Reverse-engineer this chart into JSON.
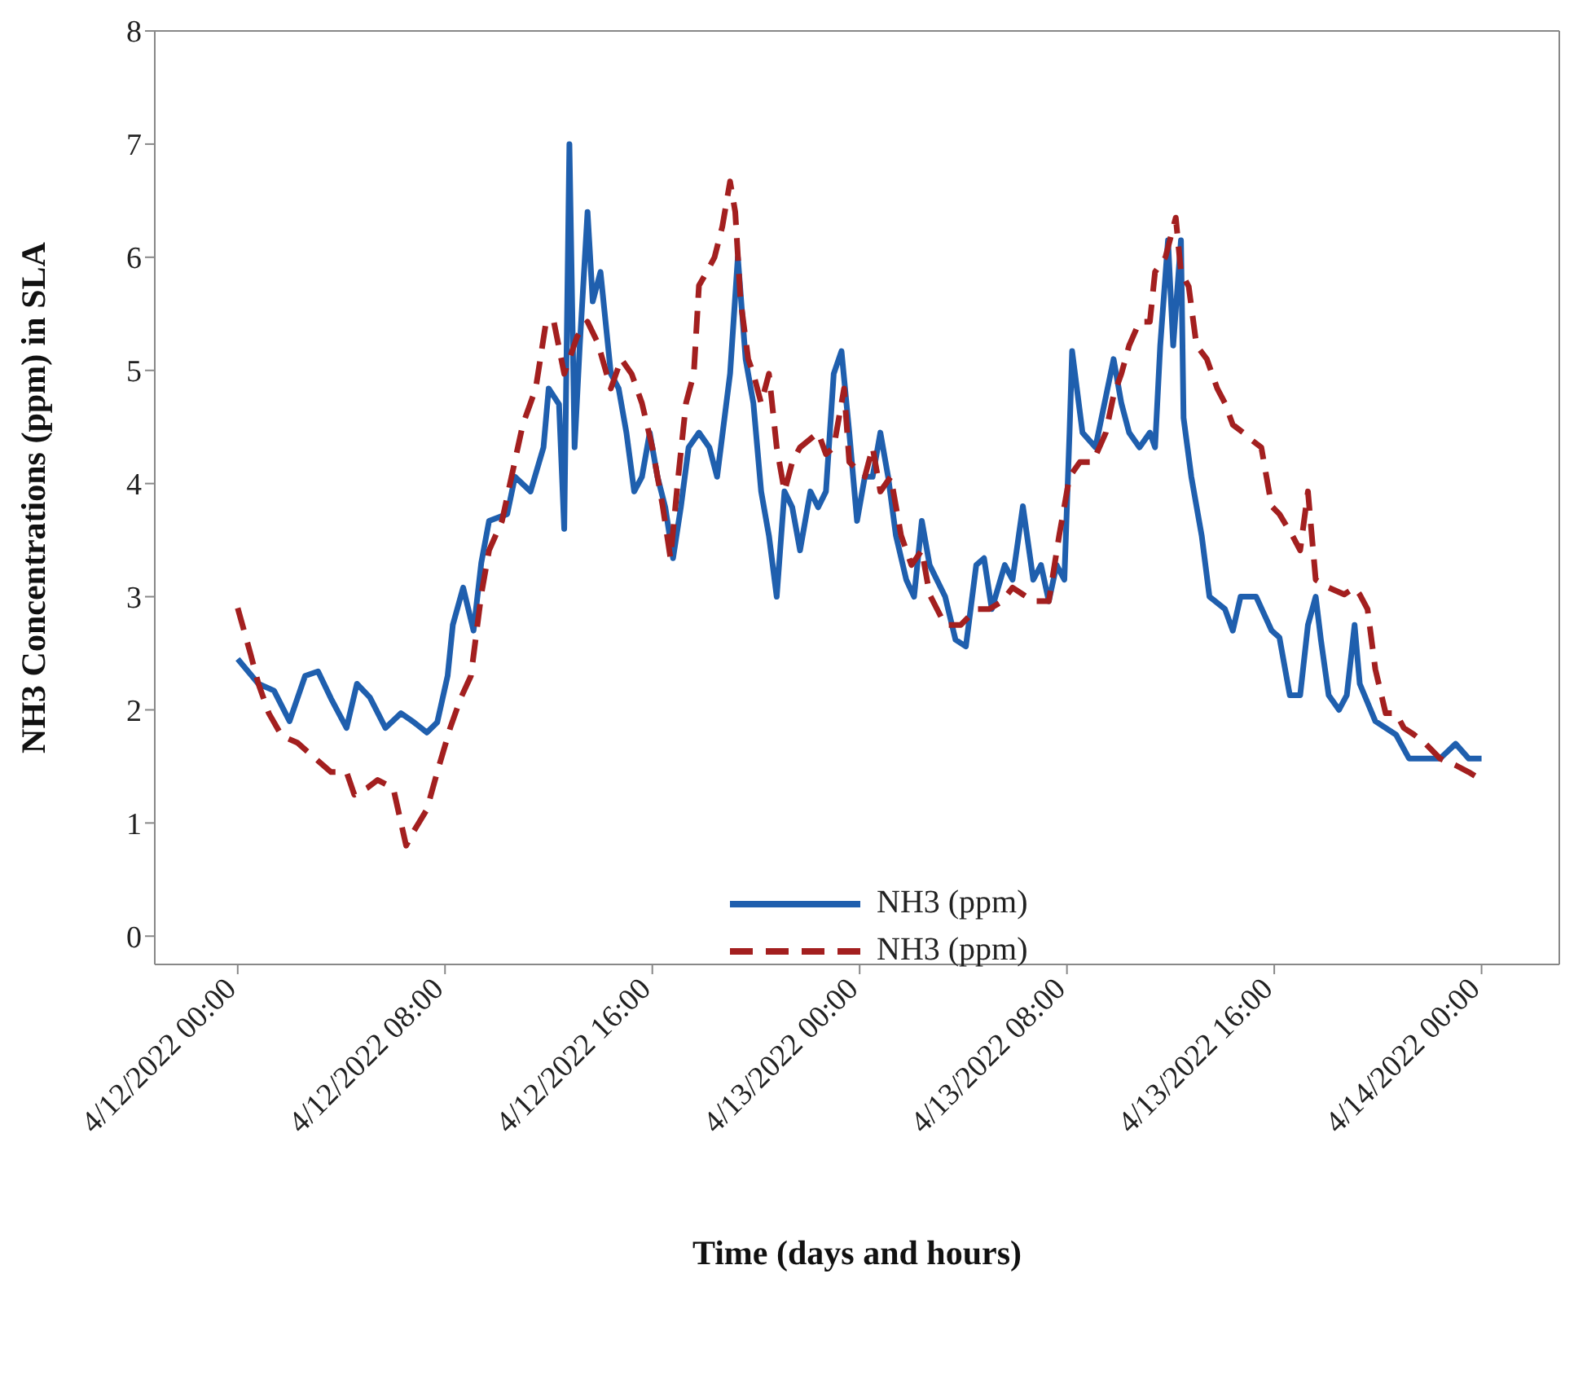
{
  "chart_data": {
    "type": "line",
    "xlabel": "Time (days and hours)",
    "ylabel": "NH3 Concentrations (ppm) in SLA",
    "xlim": [
      "2022-04-11T20:48",
      "2022-04-14T03:00"
    ],
    "xticks": [
      {
        "value": "2022-04-12T00:00",
        "label": "4/12/2022 00:00"
      },
      {
        "value": "2022-04-12T08:00",
        "label": "4/12/2022 08:00"
      },
      {
        "value": "2022-04-12T16:00",
        "label": "4/12/2022 16:00"
      },
      {
        "value": "2022-04-13T00:00",
        "label": "4/13/2022 00:00"
      },
      {
        "value": "2022-04-13T08:00",
        "label": "4/13/2022 08:00"
      },
      {
        "value": "2022-04-13T16:00",
        "label": "4/13/2022 16:00"
      },
      {
        "value": "2022-04-14T00:00",
        "label": "4/14/2022 00:00"
      }
    ],
    "ylim": [
      -0.25,
      8
    ],
    "yticks": [
      0,
      1,
      2,
      3,
      4,
      5,
      6,
      7,
      8
    ],
    "legend": "bottom",
    "marker": "none",
    "series": [
      {
        "name": "NH3 (ppm)",
        "color": "#1f5fae",
        "line_style": "solid",
        "x": [
          "2022-04-12T00:00",
          "2022-04-12T00:48",
          "2022-04-12T01:24",
          "2022-04-12T02:00",
          "2022-04-12T02:36",
          "2022-04-12T03:06",
          "2022-04-12T03:36",
          "2022-04-12T04:12",
          "2022-04-12T04:36",
          "2022-04-12T05:06",
          "2022-04-12T05:42",
          "2022-04-12T06:18",
          "2022-04-12T06:48",
          "2022-04-12T07:18",
          "2022-04-12T07:42",
          "2022-04-12T08:06",
          "2022-04-12T08:18",
          "2022-04-12T08:42",
          "2022-04-12T09:06",
          "2022-04-12T09:24",
          "2022-04-12T09:42",
          "2022-04-12T10:24",
          "2022-04-12T10:42",
          "2022-04-12T11:18",
          "2022-04-12T11:48",
          "2022-04-12T12:00",
          "2022-04-12T12:24",
          "2022-04-12T12:36",
          "2022-04-12T12:48",
          "2022-04-12T13:00",
          "2022-04-12T13:12",
          "2022-04-12T13:30",
          "2022-04-12T13:42",
          "2022-04-12T14:00",
          "2022-04-12T14:24",
          "2022-04-12T14:42",
          "2022-04-12T15:00",
          "2022-04-12T15:18",
          "2022-04-12T15:36",
          "2022-04-12T15:54",
          "2022-04-12T16:12",
          "2022-04-12T16:30",
          "2022-04-12T16:48",
          "2022-04-12T17:06",
          "2022-04-12T17:24",
          "2022-04-12T17:48",
          "2022-04-12T18:12",
          "2022-04-12T18:30",
          "2022-04-12T19:00",
          "2022-04-12T19:18",
          "2022-04-12T19:36",
          "2022-04-12T19:54",
          "2022-04-12T20:12",
          "2022-04-12T20:30",
          "2022-04-12T20:48",
          "2022-04-12T21:06",
          "2022-04-12T21:24",
          "2022-04-12T21:42",
          "2022-04-12T22:06",
          "2022-04-12T22:24",
          "2022-04-12T22:42",
          "2022-04-12T23:00",
          "2022-04-12T23:18",
          "2022-04-12T23:36",
          "2022-04-12T23:54",
          "2022-04-13T00:12",
          "2022-04-13T00:30",
          "2022-04-13T00:48",
          "2022-04-13T01:06",
          "2022-04-13T01:24",
          "2022-04-13T01:48",
          "2022-04-13T02:06",
          "2022-04-13T02:24",
          "2022-04-13T02:42",
          "2022-04-13T03:18",
          "2022-04-13T03:42",
          "2022-04-13T04:06",
          "2022-04-13T04:30",
          "2022-04-13T04:48",
          "2022-04-13T05:06",
          "2022-04-13T05:36",
          "2022-04-13T05:54",
          "2022-04-13T06:18",
          "2022-04-13T06:42",
          "2022-04-13T07:00",
          "2022-04-13T07:18",
          "2022-04-13T07:36",
          "2022-04-13T07:54",
          "2022-04-13T08:06",
          "2022-04-13T08:12",
          "2022-04-13T08:36",
          "2022-04-13T09:06",
          "2022-04-13T09:48",
          "2022-04-13T10:06",
          "2022-04-13T10:24",
          "2022-04-13T10:48",
          "2022-04-13T11:12",
          "2022-04-13T11:24",
          "2022-04-13T11:36",
          "2022-04-13T11:54",
          "2022-04-13T12:06",
          "2022-04-13T12:24",
          "2022-04-13T12:30",
          "2022-04-13T12:48",
          "2022-04-13T13:12",
          "2022-04-13T13:30",
          "2022-04-13T14:06",
          "2022-04-13T14:24",
          "2022-04-13T14:42",
          "2022-04-13T15:18",
          "2022-04-13T15:54",
          "2022-04-13T16:12",
          "2022-04-13T16:36",
          "2022-04-13T17:00",
          "2022-04-13T17:18",
          "2022-04-13T17:36",
          "2022-04-13T17:48",
          "2022-04-13T18:06",
          "2022-04-13T18:30",
          "2022-04-13T18:48",
          "2022-04-13T19:06",
          "2022-04-13T19:18",
          "2022-04-13T19:54",
          "2022-04-13T20:42",
          "2022-04-13T21:12",
          "2022-04-13T21:48",
          "2022-04-13T22:24",
          "2022-04-13T23:00",
          "2022-04-13T23:30",
          "2022-04-14T00:00"
        ],
        "values": [
          2.45,
          2.23,
          2.17,
          1.9,
          2.3,
          2.34,
          2.1,
          1.84,
          2.23,
          2.11,
          1.84,
          1.97,
          1.89,
          1.8,
          1.89,
          2.3,
          2.75,
          3.08,
          2.7,
          3.3,
          3.67,
          3.73,
          4.06,
          3.93,
          4.32,
          4.84,
          4.7,
          3.6,
          7.0,
          4.32,
          5.22,
          6.4,
          5.61,
          5.87,
          4.97,
          4.84,
          4.45,
          3.93,
          4.06,
          4.45,
          4.06,
          3.79,
          3.34,
          3.79,
          4.32,
          4.45,
          4.32,
          4.06,
          4.97,
          6.0,
          5.1,
          4.71,
          3.93,
          3.54,
          3.0,
          3.93,
          3.79,
          3.41,
          3.93,
          3.79,
          3.93,
          4.97,
          5.17,
          4.45,
          3.67,
          4.06,
          4.06,
          4.45,
          4.06,
          3.54,
          3.15,
          3.0,
          3.67,
          3.28,
          3.0,
          2.62,
          2.56,
          3.28,
          3.34,
          2.89,
          3.28,
          3.15,
          3.8,
          3.15,
          3.28,
          2.96,
          3.28,
          3.15,
          4.45,
          5.17,
          4.45,
          4.32,
          5.1,
          4.71,
          4.45,
          4.32,
          4.45,
          4.32,
          5.22,
          6.15,
          5.22,
          6.15,
          4.58,
          4.06,
          3.54,
          3.0,
          2.89,
          2.7,
          3.0,
          3.0,
          2.7,
          2.64,
          2.13,
          2.13,
          2.75,
          3.0,
          2.62,
          2.13,
          2.0,
          2.13,
          2.75,
          2.23,
          1.9,
          1.78,
          1.57,
          1.57,
          1.57,
          1.7,
          1.57,
          1.57
        ]
      },
      {
        "name": "NH3 (ppm)",
        "color": "#a31f1f",
        "line_style": "dashed",
        "x": [
          "2022-04-12T00:00",
          "2022-04-12T00:30",
          "2022-04-12T00:48",
          "2022-04-12T01:12",
          "2022-04-12T01:42",
          "2022-04-12T02:18",
          "2022-04-12T03:00",
          "2022-04-12T03:36",
          "2022-04-12T04:12",
          "2022-04-12T04:30",
          "2022-04-12T05:00",
          "2022-04-12T05:24",
          "2022-04-12T06:00",
          "2022-04-12T06:30",
          "2022-04-12T06:48",
          "2022-04-12T07:18",
          "2022-04-12T07:42",
          "2022-04-12T08:12",
          "2022-04-12T08:36",
          "2022-04-12T09:00",
          "2022-04-12T09:24",
          "2022-04-12T09:42",
          "2022-04-12T10:12",
          "2022-04-12T10:30",
          "2022-04-12T11:00",
          "2022-04-12T11:30",
          "2022-04-12T11:54",
          "2022-04-12T12:12",
          "2022-04-12T12:36",
          "2022-04-12T13:06",
          "2022-04-12T13:30",
          "2022-04-12T13:54",
          "2022-04-12T14:24",
          "2022-04-12T14:48",
          "2022-04-12T15:12",
          "2022-04-12T15:36",
          "2022-04-12T16:00",
          "2022-04-12T16:24",
          "2022-04-12T16:42",
          "2022-04-12T17:00",
          "2022-04-12T17:18",
          "2022-04-12T17:36",
          "2022-04-12T17:48",
          "2022-04-12T18:06",
          "2022-04-12T18:24",
          "2022-04-12T18:42",
          "2022-04-12T19:00",
          "2022-04-12T19:12",
          "2022-04-12T19:24",
          "2022-04-12T19:42",
          "2022-04-12T19:54",
          "2022-04-12T20:12",
          "2022-04-12T20:30",
          "2022-04-12T20:48",
          "2022-04-12T21:06",
          "2022-04-12T21:24",
          "2022-04-12T21:42",
          "2022-04-12T22:24",
          "2022-04-12T22:42",
          "2022-04-12T23:00",
          "2022-04-12T23:24",
          "2022-04-12T23:36",
          "2022-04-13T00:12",
          "2022-04-13T00:30",
          "2022-04-13T00:48",
          "2022-04-13T01:12",
          "2022-04-13T01:36",
          "2022-04-13T02:00",
          "2022-04-13T02:24",
          "2022-04-13T02:42",
          "2022-04-13T03:18",
          "2022-04-13T03:54",
          "2022-04-13T04:30",
          "2022-04-13T05:00",
          "2022-04-13T05:30",
          "2022-04-13T05:54",
          "2022-04-13T06:18",
          "2022-04-13T06:42",
          "2022-04-13T07:18",
          "2022-04-13T07:42",
          "2022-04-13T08:06",
          "2022-04-13T08:30",
          "2022-04-13T09:00",
          "2022-04-13T09:30",
          "2022-04-13T09:48",
          "2022-04-13T10:06",
          "2022-04-13T10:24",
          "2022-04-13T10:48",
          "2022-04-13T11:12",
          "2022-04-13T11:24",
          "2022-04-13T11:48",
          "2022-04-13T12:12",
          "2022-04-13T12:24",
          "2022-04-13T12:42",
          "2022-04-13T13:00",
          "2022-04-13T13:24",
          "2022-04-13T13:48",
          "2022-04-13T14:06",
          "2022-04-13T14:24",
          "2022-04-13T14:48",
          "2022-04-13T15:06",
          "2022-04-13T15:30",
          "2022-04-13T15:54",
          "2022-04-13T16:12",
          "2022-04-13T16:42",
          "2022-04-13T17:00",
          "2022-04-13T17:18",
          "2022-04-13T17:36",
          "2022-04-13T18:06",
          "2022-04-13T18:42",
          "2022-04-13T19:06",
          "2022-04-13T19:18",
          "2022-04-13T19:36",
          "2022-04-13T19:54",
          "2022-04-13T20:18",
          "2022-04-13T20:42",
          "2022-04-13T21:00",
          "2022-04-13T21:24",
          "2022-04-13T21:48",
          "2022-04-13T22:24",
          "2022-04-13T23:00",
          "2022-04-13T23:30",
          "2022-04-14T00:00"
        ],
        "values": [
          2.9,
          2.49,
          2.23,
          1.97,
          1.77,
          1.71,
          1.57,
          1.45,
          1.45,
          1.25,
          1.31,
          1.38,
          1.31,
          0.8,
          0.93,
          1.12,
          1.45,
          1.84,
          2.1,
          2.3,
          3.02,
          3.41,
          3.67,
          3.99,
          4.52,
          4.84,
          5.43,
          5.43,
          4.97,
          5.3,
          5.43,
          5.24,
          4.84,
          5.1,
          4.97,
          4.71,
          4.32,
          3.8,
          3.34,
          4.06,
          4.71,
          4.97,
          5.75,
          5.87,
          6.0,
          6.27,
          6.67,
          6.4,
          5.63,
          5.1,
          4.97,
          4.71,
          4.97,
          4.32,
          3.93,
          4.19,
          4.32,
          4.45,
          4.26,
          4.32,
          4.84,
          4.19,
          4.06,
          4.32,
          3.93,
          4.06,
          3.54,
          3.28,
          3.41,
          3.02,
          2.75,
          2.75,
          2.89,
          2.89,
          2.96,
          3.08,
          3.02,
          2.96,
          2.96,
          3.54,
          4.06,
          4.19,
          4.19,
          4.45,
          4.78,
          4.97,
          5.22,
          5.43,
          5.43,
          5.87,
          6.0,
          6.35,
          5.87,
          5.74,
          5.22,
          5.1,
          4.84,
          4.71,
          4.52,
          4.45,
          4.39,
          4.32,
          3.8,
          3.73,
          3.54,
          3.41,
          3.93,
          3.15,
          3.08,
          3.02,
          3.08,
          3.02,
          2.89,
          2.36,
          1.97,
          1.97,
          1.84,
          1.78,
          1.71,
          1.57,
          1.51,
          1.45,
          1.38
        ]
      }
    ]
  }
}
